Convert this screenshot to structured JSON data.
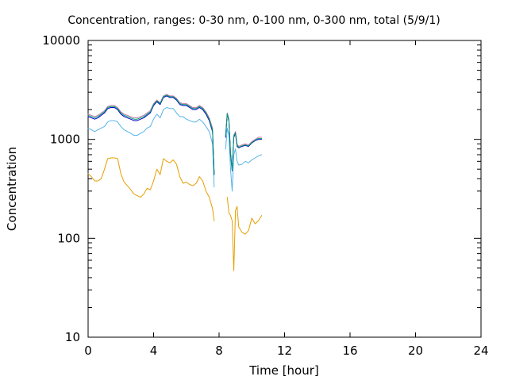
{
  "chart_data": {
    "type": "line",
    "title": "Concentration, ranges: 0-30 nm, 0-100 nm, 0-300 nm, total (5/9/1)",
    "xlabel": "Time [hour]",
    "ylabel": "Concentration",
    "x_ticks": [
      0,
      4,
      8,
      12,
      16,
      20,
      24
    ],
    "y_ticks": [
      10,
      100,
      1000,
      10000
    ],
    "x_tick_labels": [
      "0",
      "4",
      "8",
      "12",
      "16",
      "20",
      "24"
    ],
    "y_tick_labels": [
      "10",
      "100",
      "1000",
      "10000"
    ],
    "xlim": [
      0,
      24
    ],
    "ylim": [
      10,
      10000
    ],
    "y_scale": "log",
    "grid": false,
    "legend": "none",
    "x": [
      0,
      0.2,
      0.4,
      0.6,
      0.8,
      1.0,
      1.2,
      1.4,
      1.6,
      1.8,
      2.0,
      2.2,
      2.4,
      2.6,
      2.8,
      3.0,
      3.2,
      3.4,
      3.6,
      3.8,
      4.0,
      4.2,
      4.4,
      4.6,
      4.8,
      5.0,
      5.2,
      5.4,
      5.6,
      5.8,
      6.0,
      6.2,
      6.4,
      6.6,
      6.8,
      7.0,
      7.2,
      7.4,
      7.6,
      7.7,
      7.8,
      7.9,
      8.0,
      8.1,
      8.2,
      8.3,
      8.4,
      8.5,
      8.6,
      8.7,
      8.8,
      8.9,
      9.0,
      9.1,
      9.2,
      9.4,
      9.6,
      9.8,
      10.0,
      10.2,
      10.4,
      10.6
    ],
    "series": [
      {
        "color": "#e69f00",
        "values": [
          450,
          420,
          380,
          380,
          400,
          500,
          640,
          650,
          650,
          640,
          450,
          370,
          340,
          310,
          280,
          270,
          260,
          280,
          320,
          310,
          380,
          500,
          440,
          640,
          600,
          580,
          620,
          560,
          420,
          360,
          370,
          350,
          340,
          360,
          420,
          380,
          300,
          260,
          200,
          150,
          null,
          null,
          null,
          null,
          null,
          null,
          null,
          260,
          180,
          170,
          150,
          47,
          190,
          210,
          130,
          115,
          110,
          120,
          160,
          140,
          150,
          170
        ]
      },
      {
        "color": "#56b4e9",
        "values": [
          1300,
          1250,
          1200,
          1250,
          1300,
          1350,
          1500,
          1550,
          1550,
          1500,
          1350,
          1250,
          1200,
          1150,
          1100,
          1100,
          1150,
          1200,
          1300,
          1350,
          1600,
          1800,
          1650,
          2000,
          2100,
          2050,
          2050,
          1850,
          1700,
          1700,
          1600,
          1550,
          1500,
          1500,
          1600,
          1500,
          1350,
          1200,
          900,
          330,
          null,
          null,
          null,
          null,
          null,
          null,
          800,
          1300,
          1100,
          500,
          300,
          700,
          800,
          600,
          550,
          560,
          600,
          580,
          620,
          650,
          680,
          700
        ]
      },
      {
        "color": "#cc79a7",
        "values": [
          1800,
          1750,
          1700,
          1750,
          1850,
          1950,
          2150,
          2200,
          2200,
          2100,
          1900,
          1800,
          1750,
          1700,
          1650,
          1650,
          1700,
          1750,
          1850,
          1950,
          2300,
          2500,
          2350,
          2750,
          2850,
          2750,
          2750,
          2600,
          2350,
          2300,
          2300,
          2200,
          2100,
          2100,
          2200,
          2100,
          1900,
          1650,
          1300,
          450,
          null,
          null,
          null,
          null,
          null,
          null,
          1100,
          1850,
          1600,
          750,
          500,
          1100,
          1200,
          900,
          850,
          880,
          900,
          880,
          950,
          1000,
          1050,
          1050
        ]
      },
      {
        "color": "#0000cc",
        "values": [
          1700,
          1650,
          1600,
          1650,
          1750,
          1850,
          2050,
          2100,
          2100,
          2000,
          1800,
          1700,
          1650,
          1600,
          1550,
          1550,
          1600,
          1650,
          1750,
          1850,
          2200,
          2400,
          2250,
          2650,
          2750,
          2650,
          2650,
          2500,
          2250,
          2200,
          2200,
          2100,
          2000,
          2000,
          2100,
          2000,
          1800,
          1550,
          1200,
          440,
          null,
          null,
          null,
          null,
          null,
          null,
          1050,
          1800,
          1550,
          700,
          480,
          1050,
          1150,
          850,
          820,
          850,
          870,
          850,
          920,
          970,
          1000,
          1000
        ]
      },
      {
        "color": "#009e73",
        "values": [
          1750,
          1700,
          1650,
          1700,
          1800,
          1900,
          2100,
          2150,
          2150,
          2050,
          1850,
          1750,
          1700,
          1650,
          1600,
          1600,
          1650,
          1700,
          1800,
          1900,
          2250,
          2450,
          2300,
          2700,
          2800,
          2700,
          2700,
          2550,
          2300,
          2250,
          2250,
          2150,
          2050,
          2050,
          2150,
          2050,
          1850,
          1600,
          1250,
          445,
          null,
          null,
          null,
          null,
          null,
          null,
          1080,
          1820,
          1580,
          720,
          490,
          1080,
          1170,
          870,
          830,
          860,
          880,
          860,
          930,
          980,
          1020,
          1020
        ]
      }
    ]
  }
}
